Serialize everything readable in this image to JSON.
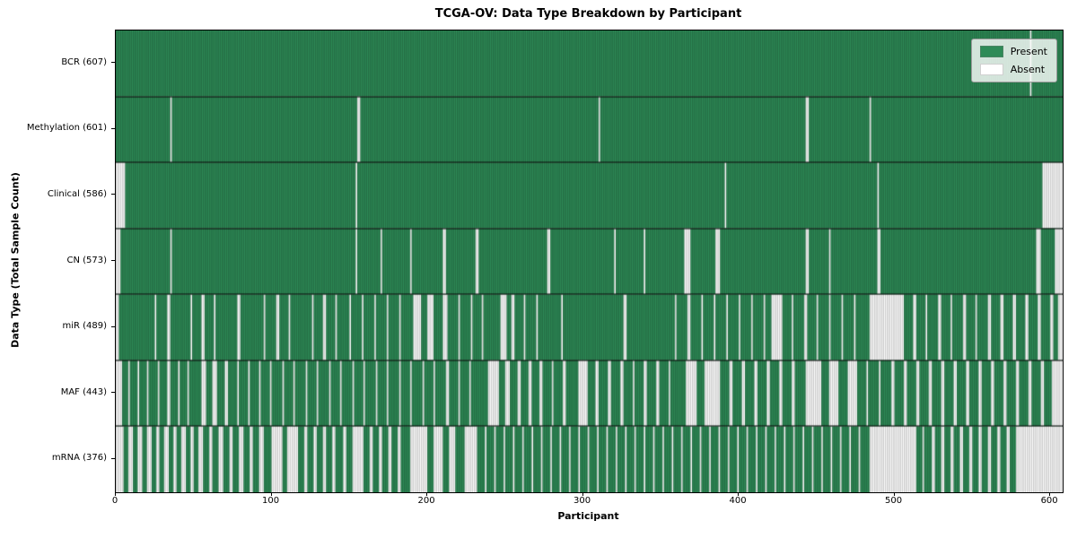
{
  "chart_data": {
    "type": "heatmap",
    "title": "TCGA-OV: Data Type Breakdown by Participant",
    "xlabel": "Participant",
    "ylabel": "Data Type (Total Sample Count)",
    "n_participants": 608,
    "x_max": 608,
    "x_ticks": [
      0,
      100,
      200,
      300,
      400,
      500,
      600
    ],
    "legend_position": "upper right",
    "grid": "row separators only",
    "colors": {
      "present": "#2e8b57",
      "absent": "#ffffff",
      "bar_edge": "rgba(0,0,0,0.38)",
      "separator": "#000000"
    },
    "legend": [
      {
        "label": "Present",
        "color": "#2e8b57"
      },
      {
        "label": "Absent",
        "color": "#ffffff"
      }
    ],
    "rows": [
      {
        "label": "BCR (607)",
        "name": "BCR",
        "count": 607,
        "absent_intervals": [
          [
            587,
            587
          ]
        ]
      },
      {
        "label": "Methylation (601)",
        "name": "Methylation",
        "count": 601,
        "absent_intervals": [
          [
            35,
            35
          ],
          [
            155,
            156
          ],
          [
            310,
            310
          ],
          [
            443,
            444
          ],
          [
            484,
            484
          ]
        ]
      },
      {
        "label": "Clinical (586)",
        "name": "Clinical",
        "count": 586,
        "absent_intervals": [
          [
            0,
            5
          ],
          [
            154,
            154
          ],
          [
            391,
            391
          ],
          [
            489,
            489
          ],
          [
            595,
            607
          ]
        ]
      },
      {
        "label": "CN (573)",
        "name": "CN",
        "count": 573,
        "absent_intervals": [
          [
            0,
            2
          ],
          [
            35,
            35
          ],
          [
            154,
            154
          ],
          [
            170,
            170
          ],
          [
            189,
            189
          ],
          [
            210,
            211
          ],
          [
            231,
            232
          ],
          [
            277,
            278
          ],
          [
            320,
            320
          ],
          [
            339,
            339
          ],
          [
            365,
            368
          ],
          [
            385,
            387
          ],
          [
            443,
            444
          ],
          [
            458,
            458
          ],
          [
            489,
            490
          ],
          [
            591,
            593
          ],
          [
            603,
            607
          ]
        ]
      },
      {
        "label": "miR (489)",
        "name": "miR",
        "count": 489,
        "absent_intervals": [
          [
            0,
            1
          ],
          [
            25,
            25
          ],
          [
            33,
            34
          ],
          [
            48,
            48
          ],
          [
            55,
            56
          ],
          [
            63,
            63
          ],
          [
            78,
            79
          ],
          [
            95,
            95
          ],
          [
            103,
            104
          ],
          [
            111,
            111
          ],
          [
            126,
            126
          ],
          [
            133,
            134
          ],
          [
            141,
            141
          ],
          [
            150,
            150
          ],
          [
            158,
            158
          ],
          [
            166,
            166
          ],
          [
            174,
            174
          ],
          [
            182,
            182
          ],
          [
            191,
            195
          ],
          [
            200,
            203
          ],
          [
            210,
            212
          ],
          [
            220,
            220
          ],
          [
            228,
            228
          ],
          [
            235,
            235
          ],
          [
            247,
            250
          ],
          [
            254,
            255
          ],
          [
            262,
            262
          ],
          [
            270,
            270
          ],
          [
            286,
            286
          ],
          [
            326,
            327
          ],
          [
            359,
            359
          ],
          [
            367,
            368
          ],
          [
            376,
            376
          ],
          [
            384,
            384
          ],
          [
            392,
            392
          ],
          [
            400,
            400
          ],
          [
            408,
            408
          ],
          [
            416,
            416
          ],
          [
            421,
            427
          ],
          [
            434,
            434
          ],
          [
            442,
            443
          ],
          [
            450,
            450
          ],
          [
            458,
            458
          ],
          [
            466,
            466
          ],
          [
            474,
            474
          ],
          [
            484,
            505
          ],
          [
            512,
            513
          ],
          [
            520,
            520
          ],
          [
            528,
            529
          ],
          [
            536,
            536
          ],
          [
            544,
            545
          ],
          [
            552,
            552
          ],
          [
            560,
            561
          ],
          [
            568,
            569
          ],
          [
            576,
            577
          ],
          [
            584,
            585
          ],
          [
            592,
            593
          ],
          [
            600,
            601
          ],
          [
            605,
            607
          ]
        ]
      },
      {
        "label": "MAF (443)",
        "name": "MAF",
        "count": 443,
        "absent_intervals": [
          [
            0,
            3
          ],
          [
            8,
            8
          ],
          [
            14,
            14
          ],
          [
            20,
            20
          ],
          [
            27,
            27
          ],
          [
            33,
            34
          ],
          [
            40,
            40
          ],
          [
            46,
            46
          ],
          [
            55,
            57
          ],
          [
            62,
            64
          ],
          [
            70,
            71
          ],
          [
            78,
            78
          ],
          [
            85,
            85
          ],
          [
            92,
            92
          ],
          [
            99,
            99
          ],
          [
            107,
            107
          ],
          [
            114,
            114
          ],
          [
            122,
            122
          ],
          [
            129,
            129
          ],
          [
            137,
            137
          ],
          [
            144,
            144
          ],
          [
            152,
            152
          ],
          [
            159,
            159
          ],
          [
            167,
            167
          ],
          [
            174,
            174
          ],
          [
            182,
            182
          ],
          [
            189,
            189
          ],
          [
            197,
            197
          ],
          [
            204,
            204
          ],
          [
            212,
            213
          ],
          [
            220,
            220
          ],
          [
            227,
            227
          ],
          [
            239,
            245
          ],
          [
            250,
            252
          ],
          [
            258,
            259
          ],
          [
            265,
            266
          ],
          [
            272,
            273
          ],
          [
            280,
            280
          ],
          [
            287,
            288
          ],
          [
            297,
            302
          ],
          [
            308,
            309
          ],
          [
            316,
            317
          ],
          [
            324,
            325
          ],
          [
            332,
            332
          ],
          [
            339,
            340
          ],
          [
            347,
            348
          ],
          [
            355,
            355
          ],
          [
            366,
            372
          ],
          [
            378,
            387
          ],
          [
            394,
            395
          ],
          [
            402,
            403
          ],
          [
            410,
            411
          ],
          [
            418,
            419
          ],
          [
            426,
            427
          ],
          [
            434,
            435
          ],
          [
            443,
            452
          ],
          [
            458,
            463
          ],
          [
            470,
            475
          ],
          [
            482,
            482
          ],
          [
            490,
            490
          ],
          [
            498,
            499
          ],
          [
            506,
            507
          ],
          [
            514,
            515
          ],
          [
            522,
            523
          ],
          [
            530,
            531
          ],
          [
            538,
            539
          ],
          [
            546,
            547
          ],
          [
            554,
            555
          ],
          [
            562,
            563
          ],
          [
            570,
            571
          ],
          [
            578,
            579
          ],
          [
            586,
            587
          ],
          [
            594,
            595
          ],
          [
            601,
            607
          ]
        ]
      },
      {
        "label": "mRNA (376)",
        "name": "mRNA",
        "count": 376,
        "absent_intervals": [
          [
            0,
            4
          ],
          [
            8,
            10
          ],
          [
            14,
            16
          ],
          [
            20,
            22
          ],
          [
            26,
            27
          ],
          [
            31,
            33
          ],
          [
            37,
            38
          ],
          [
            42,
            44
          ],
          [
            48,
            49
          ],
          [
            53,
            55
          ],
          [
            60,
            61
          ],
          [
            66,
            68
          ],
          [
            73,
            74
          ],
          [
            79,
            81
          ],
          [
            86,
            87
          ],
          [
            92,
            94
          ],
          [
            100,
            106
          ],
          [
            110,
            116
          ],
          [
            121,
            122
          ],
          [
            127,
            128
          ],
          [
            133,
            134
          ],
          [
            139,
            140
          ],
          [
            146,
            147
          ],
          [
            152,
            158
          ],
          [
            163,
            164
          ],
          [
            169,
            170
          ],
          [
            175,
            176
          ],
          [
            181,
            182
          ],
          [
            189,
            199
          ],
          [
            204,
            209
          ],
          [
            214,
            217
          ],
          [
            224,
            231
          ],
          [
            237,
            237
          ],
          [
            243,
            243
          ],
          [
            249,
            249
          ],
          [
            255,
            255
          ],
          [
            261,
            261
          ],
          [
            267,
            267
          ],
          [
            273,
            273
          ],
          [
            279,
            279
          ],
          [
            285,
            285
          ],
          [
            291,
            291
          ],
          [
            297,
            297
          ],
          [
            303,
            303
          ],
          [
            309,
            309
          ],
          [
            315,
            315
          ],
          [
            321,
            321
          ],
          [
            327,
            327
          ],
          [
            333,
            333
          ],
          [
            339,
            339
          ],
          [
            345,
            345
          ],
          [
            351,
            351
          ],
          [
            357,
            357
          ],
          [
            363,
            363
          ],
          [
            369,
            369
          ],
          [
            375,
            375
          ],
          [
            381,
            381
          ],
          [
            387,
            387
          ],
          [
            393,
            393
          ],
          [
            399,
            399
          ],
          [
            405,
            405
          ],
          [
            411,
            411
          ],
          [
            417,
            417
          ],
          [
            423,
            423
          ],
          [
            429,
            429
          ],
          [
            435,
            435
          ],
          [
            441,
            441
          ],
          [
            447,
            447
          ],
          [
            453,
            453
          ],
          [
            459,
            459
          ],
          [
            465,
            465
          ],
          [
            471,
            471
          ],
          [
            477,
            477
          ],
          [
            484,
            513
          ],
          [
            518,
            518
          ],
          [
            524,
            525
          ],
          [
            530,
            531
          ],
          [
            536,
            537
          ],
          [
            542,
            543
          ],
          [
            548,
            549
          ],
          [
            554,
            555
          ],
          [
            560,
            561
          ],
          [
            566,
            567
          ],
          [
            572,
            573
          ],
          [
            578,
            607
          ]
        ]
      }
    ]
  }
}
